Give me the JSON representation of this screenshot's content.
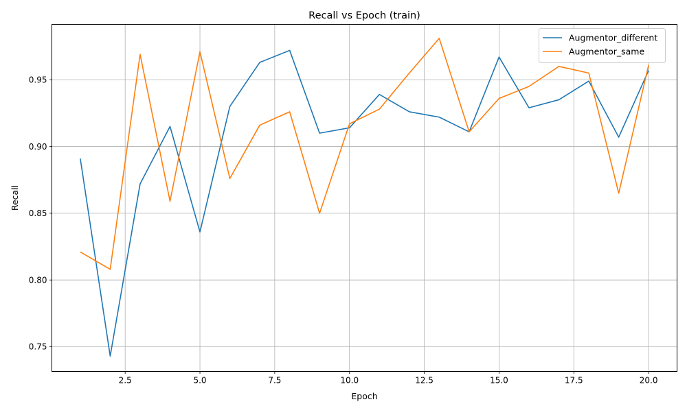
{
  "chart_data": {
    "type": "line",
    "title": "Recall vs Epoch (train)",
    "xlabel": "Epoch",
    "ylabel": "Recall",
    "xlim": [
      0.05,
      20.95
    ],
    "ylim": [
      0.7315,
      0.9915
    ],
    "xticks": [
      2.5,
      5.0,
      7.5,
      10.0,
      12.5,
      15.0,
      17.5,
      20.0
    ],
    "xtick_labels": [
      "2.5",
      "5.0",
      "7.5",
      "10.0",
      "12.5",
      "15.0",
      "17.5",
      "20.0"
    ],
    "yticks": [
      0.75,
      0.8,
      0.85,
      0.9,
      0.95
    ],
    "ytick_labels": [
      "0.75",
      "0.80",
      "0.85",
      "0.90",
      "0.95"
    ],
    "grid": true,
    "legend_position": "top-right",
    "x": [
      1,
      2,
      3,
      4,
      5,
      6,
      7,
      8,
      9,
      10,
      11,
      12,
      13,
      14,
      15,
      16,
      17,
      18,
      19,
      20
    ],
    "series": [
      {
        "name": "Augmentor_different",
        "color": "#1f77b4",
        "values": [
          0.891,
          0.743,
          0.872,
          0.915,
          0.836,
          0.93,
          0.963,
          0.972,
          0.91,
          0.914,
          0.939,
          0.926,
          0.922,
          0.911,
          0.967,
          0.929,
          0.935,
          0.949,
          0.907,
          0.957
        ]
      },
      {
        "name": "Augmentor_same",
        "color": "#ff7f0e",
        "values": [
          0.821,
          0.808,
          0.969,
          0.859,
          0.971,
          0.876,
          0.916,
          0.926,
          0.85,
          0.917,
          0.928,
          0.955,
          0.981,
          0.911,
          0.936,
          0.945,
          0.96,
          0.955,
          0.865,
          0.961
        ]
      }
    ]
  }
}
